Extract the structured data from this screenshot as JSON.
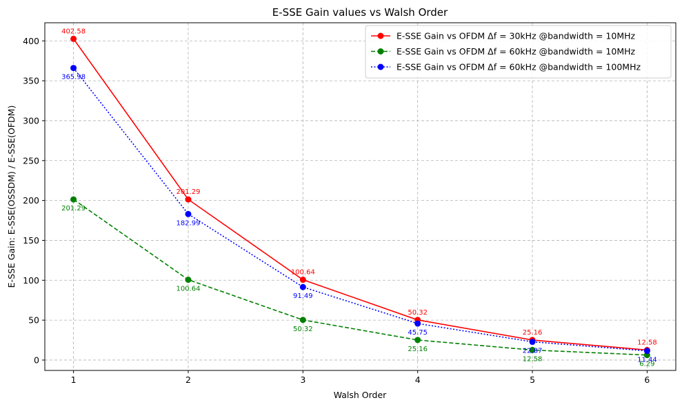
{
  "chart_data": {
    "type": "line",
    "title": "E-SSE Gain values vs Walsh Order",
    "xlabel": "Walsh Order",
    "ylabel": "E-SSE Gain: E-SSE(OSSDM) / E-SSE(OFDM)",
    "x": [
      1,
      2,
      3,
      4,
      5,
      6
    ],
    "x_ticks": [
      "1",
      "2",
      "3",
      "4",
      "5",
      "6"
    ],
    "xlim": [
      0.75,
      6.25
    ],
    "ylim": [
      -13.0,
      422.7
    ],
    "y_ticks": [
      "0",
      "50",
      "100",
      "150",
      "200",
      "250",
      "300",
      "350",
      "400"
    ],
    "y_tick_values": [
      0,
      50,
      100,
      150,
      200,
      250,
      300,
      350,
      400
    ],
    "grid": true,
    "legend_position": "top-right",
    "series": [
      {
        "name": "E-SSE Gain vs OFDM Δf = 30kHz @bandwidth = 10MHz",
        "color": "#ff0000",
        "linestyle": "solid",
        "label_position": "above",
        "values": [
          402.58,
          201.29,
          100.64,
          50.32,
          25.16,
          12.58
        ],
        "labels": [
          "402.58",
          "201.29",
          "100.64",
          "50.32",
          "25.16",
          "12.58"
        ]
      },
      {
        "name": "E-SSE Gain vs OFDM Δf = 60kHz @bandwidth = 10MHz",
        "color": "#008000",
        "linestyle": "dashed",
        "label_position": "below",
        "values": [
          201.29,
          100.64,
          50.32,
          25.16,
          12.58,
          6.29
        ],
        "labels": [
          "201.29",
          "100.64",
          "50.32",
          "25.16",
          "12.58",
          "6.29"
        ]
      },
      {
        "name": "E-SSE Gain vs OFDM Δf = 60kHz @bandwidth = 100MHz",
        "color": "#0000ff",
        "linestyle": "dotted",
        "label_position": "below",
        "values": [
          365.98,
          182.99,
          91.49,
          45.75,
          22.87,
          11.44
        ],
        "labels": [
          "365.98",
          "182.99",
          "91.49",
          "45.75",
          "22.87",
          "11.44"
        ]
      }
    ]
  }
}
